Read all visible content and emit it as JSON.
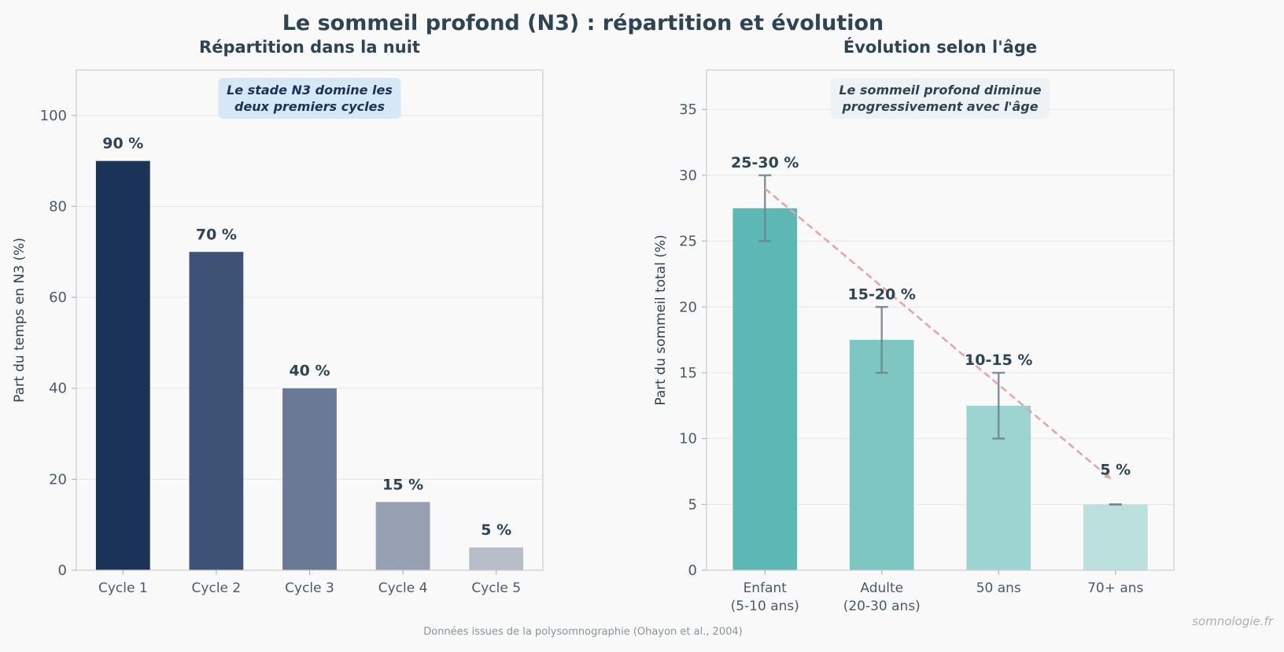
{
  "title": "Le sommeil profond (N3) : répartition et évolution",
  "footer_source": "Données issues de la polysomnographie (Ohayon et al., 2004)",
  "watermark": "somnologie.fr",
  "colors": {
    "text_dark": "#2d4454",
    "tick_text": "#4a5a6a",
    "left_bars": [
      "#1b3358",
      "#3d5275",
      "#6a7a96",
      "#97a0b2",
      "#b7bdc9"
    ],
    "right_bars": [
      "#5db8b4",
      "#7ec6c2",
      "#9dd3d0",
      "#bbe0de"
    ],
    "error_bar": "#6e8488",
    "trend_arrow": "#e8a3a0",
    "left_annotation_bg": "#d5e8f5",
    "right_annotation_bg": "#eef2f5"
  },
  "chart_data": [
    {
      "type": "bar",
      "title": "Répartition dans la nuit",
      "xlabel": "",
      "ylabel": "Part du temps en N3 (%)",
      "ylim": [
        0,
        110
      ],
      "yticks": [
        0,
        20,
        40,
        60,
        80,
        100
      ],
      "grid": true,
      "categories": [
        "Cycle 1",
        "Cycle 2",
        "Cycle 3",
        "Cycle 4",
        "Cycle 5"
      ],
      "values": [
        90,
        70,
        40,
        15,
        5
      ],
      "data_labels": [
        "90 %",
        "70 %",
        "40 %",
        "15 %",
        "5 %"
      ],
      "annotation": [
        "Le stade N3 domine les",
        "deux premiers cycles"
      ]
    },
    {
      "type": "bar",
      "title": "Évolution selon l'âge",
      "xlabel": "",
      "ylabel": "Part du sommeil total (%)",
      "ylim": [
        0,
        38
      ],
      "yticks": [
        0,
        5,
        10,
        15,
        20,
        25,
        30,
        35
      ],
      "grid": true,
      "categories": [
        [
          "Enfant",
          "(5-10 ans)"
        ],
        [
          "Adulte",
          "(20-30 ans)"
        ],
        [
          "50 ans"
        ],
        [
          "70+ ans"
        ]
      ],
      "values": [
        27.5,
        17.5,
        12.5,
        5
      ],
      "error_low": [
        25,
        15,
        10,
        5
      ],
      "error_high": [
        30,
        20,
        15,
        5
      ],
      "data_labels": [
        "25-30 %",
        "15-20 %",
        "10-15 %",
        "5 %"
      ],
      "trend": {
        "from": [
          0,
          29
        ],
        "to": [
          3,
          7
        ]
      },
      "annotation": [
        "Le sommeil profond diminue",
        "progressivement avec l'âge"
      ]
    }
  ]
}
